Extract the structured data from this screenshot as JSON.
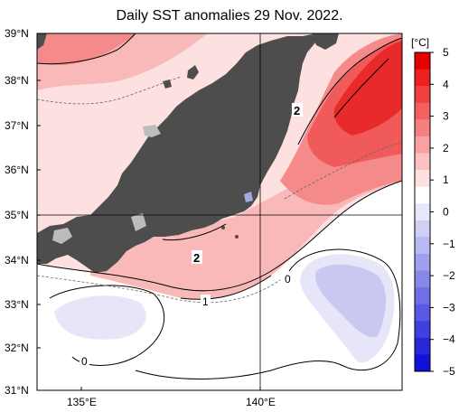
{
  "title": "Daily SST anomalies 29 Nov. 2022.",
  "map": {
    "lat_labels": [
      "39°N",
      "38°N",
      "37°N",
      "36°N",
      "35°N",
      "34°N",
      "33°N",
      "32°N",
      "31°N"
    ],
    "lon_labels": [
      "135°E",
      "140°E"
    ],
    "contour_labels": [
      "2",
      "2",
      "1",
      "0",
      "0"
    ],
    "colors": {
      "land": "#4d4d4d",
      "lake": "#bcbcbc",
      "pale_red": "#fde1e1",
      "light_red": "#f9b9b9",
      "mid_red": "#f58a8a",
      "red": "#f15a5a",
      "deep_red": "#e82a2a",
      "pale_blue": "#e6e6f8",
      "light_blue": "#c8c8f0"
    }
  },
  "colorbar": {
    "unit": "[°C]",
    "ticks": [
      "5",
      "4",
      "3",
      "2",
      "1",
      "0",
      "−1",
      "−2",
      "−3",
      "−4",
      "−5"
    ],
    "colors_top_to_bottom": [
      "#e60000",
      "#ec2020",
      "#f04040",
      "#f36060",
      "#f68080",
      "#f9a0a0",
      "#fbc0c0",
      "#fde0e0",
      "#ffffff",
      "#e8e8fb",
      "#d0d0f6",
      "#b8b8f2",
      "#a0a0ee",
      "#8888ea",
      "#7070e6",
      "#5858e2",
      "#4040de",
      "#2828da",
      "#1010d6"
    ]
  }
}
